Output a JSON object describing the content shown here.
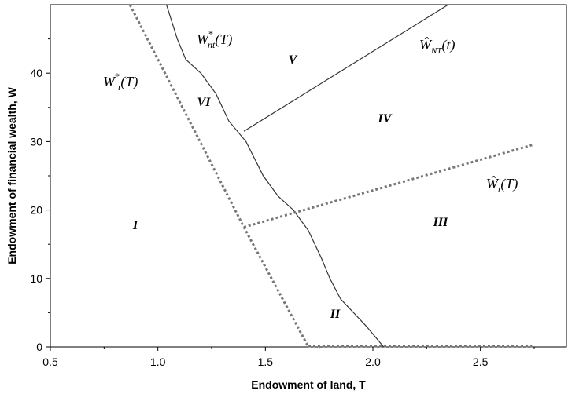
{
  "chart_data": {
    "type": "line",
    "xlabel": "Endowment of land, T",
    "ylabel": "Endowment of financial wealth, W",
    "xlim": [
      0.5,
      2.9
    ],
    "ylim": [
      0,
      50
    ],
    "x_ticks": [
      "0.5",
      "1.0",
      "1.5",
      "2.0",
      "2.5"
    ],
    "y_ticks": [
      "0",
      "10",
      "20",
      "30",
      "40"
    ],
    "grid": false,
    "series": [
      {
        "label": "W*t(T)",
        "style": "dotted",
        "points": [
          [
            0.87,
            50
          ],
          [
            1.4,
            17.5
          ],
          [
            1.7,
            0
          ]
        ]
      },
      {
        "label": "W*nt(T)",
        "style": "solid",
        "points": [
          [
            1.04,
            50
          ],
          [
            1.09,
            45
          ],
          [
            1.13,
            42
          ],
          [
            1.2,
            40
          ],
          [
            1.27,
            37
          ],
          [
            1.33,
            33
          ],
          [
            1.41,
            30
          ],
          [
            1.49,
            25
          ],
          [
            1.56,
            22
          ],
          [
            1.63,
            20
          ],
          [
            1.7,
            17
          ],
          [
            1.76,
            13
          ],
          [
            1.8,
            10
          ],
          [
            1.85,
            7
          ],
          [
            1.91,
            5
          ],
          [
            1.97,
            3
          ],
          [
            2.05,
            0
          ]
        ]
      },
      {
        "label": "ŴNT(t)",
        "style": "solid",
        "points": [
          [
            1.4,
            31.5
          ],
          [
            2.35,
            50
          ]
        ]
      },
      {
        "label": "Ŵt(T)",
        "style": "dotted",
        "points": [
          [
            1.4,
            17.5
          ],
          [
            2.74,
            29.5
          ]
        ]
      },
      {
        "label": "",
        "style": "dotted",
        "points": [
          [
            1.7,
            0.1
          ],
          [
            2.74,
            0.1
          ]
        ]
      }
    ],
    "region_labels": [
      "I",
      "II",
      "III",
      "IV",
      "V",
      "VI"
    ],
    "curve_labels": {
      "w_star_t": {
        "main": "W",
        "sup": "*",
        "sub": "t",
        "arg": "(T)"
      },
      "w_star_nt": {
        "main": "W",
        "sup": "*",
        "sub": "nt",
        "arg": "(T)"
      },
      "w_hat_nt": {
        "main": "Ŵ",
        "sub": "NT",
        "arg": "(t)"
      },
      "w_hat_t": {
        "main": "Ŵ",
        "sub": "t",
        "arg": "(T)"
      }
    }
  }
}
